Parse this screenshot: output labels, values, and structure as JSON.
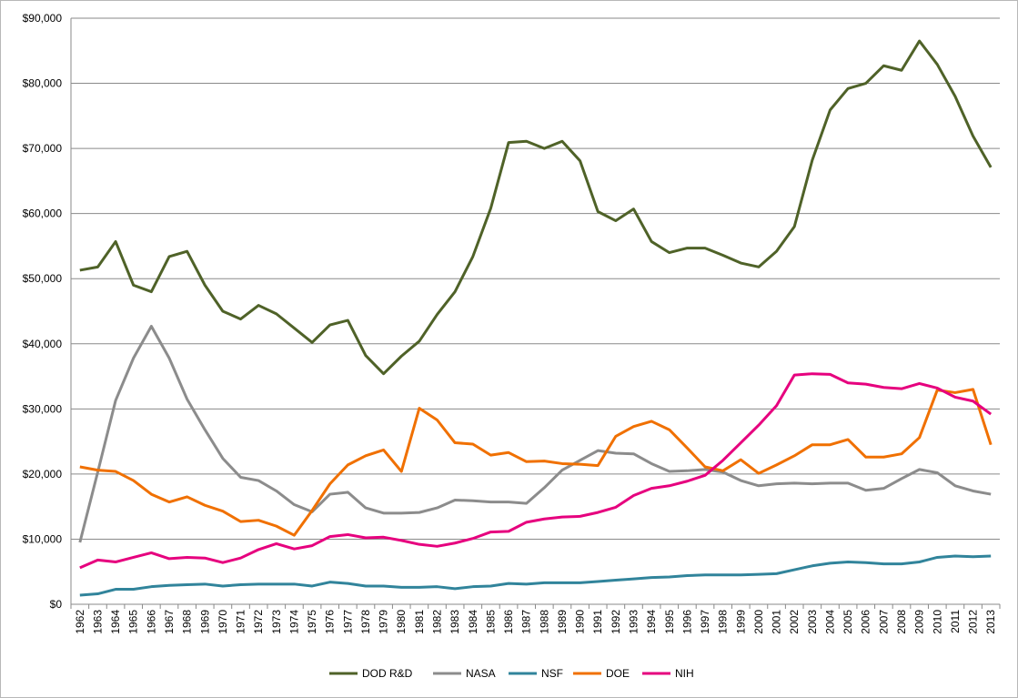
{
  "chart_data": {
    "type": "line",
    "title": "",
    "xlabel": "",
    "ylabel": "",
    "x": [
      1962,
      1963,
      1964,
      1965,
      1966,
      1967,
      1968,
      1969,
      1970,
      1971,
      1972,
      1973,
      1974,
      1975,
      1976,
      1977,
      1978,
      1979,
      1980,
      1981,
      1982,
      1983,
      1984,
      1985,
      1986,
      1987,
      1988,
      1989,
      1990,
      1991,
      1992,
      1993,
      1994,
      1995,
      1996,
      1997,
      1998,
      1999,
      2000,
      2001,
      2002,
      2003,
      2004,
      2005,
      2006,
      2007,
      2008,
      2009,
      2010,
      2011,
      2012,
      2013
    ],
    "ylim": [
      0,
      90000
    ],
    "y_ticks": [
      "$0",
      "$10,000",
      "$20,000",
      "$30,000",
      "$40,000",
      "$50,000",
      "$60,000",
      "$70,000",
      "$80,000",
      "$90,000"
    ],
    "grid": true,
    "legend_position": "bottom",
    "series": [
      {
        "name": "DOD R&D",
        "color": "#4f6228",
        "values": [
          51300,
          51800,
          55700,
          49000,
          48000,
          53400,
          54200,
          49000,
          45000,
          43800,
          45900,
          44600,
          42400,
          40200,
          42900,
          43600,
          38200,
          35400,
          38100,
          40400,
          44500,
          48000,
          53400,
          60800,
          70900,
          71100,
          70000,
          71100,
          68100,
          60300,
          58900,
          60700,
          55700,
          54000,
          54700,
          54700,
          53600,
          52400,
          51800,
          54200,
          58000,
          68200,
          75900,
          79200,
          80000,
          82700,
          82000,
          86500,
          82900,
          78000,
          71900,
          67100
        ]
      },
      {
        "name": "NASA",
        "color": "#8c8c8c",
        "values": [
          9500,
          20300,
          31300,
          37800,
          42700,
          37800,
          31500,
          26800,
          22400,
          19500,
          19000,
          17400,
          15300,
          14200,
          16900,
          17200,
          14800,
          14000,
          14000,
          14100,
          14800,
          16000,
          15900,
          15700,
          15700,
          15500,
          17900,
          20600,
          22100,
          23600,
          23200,
          23100,
          21600,
          20400,
          20500,
          20700,
          20300,
          19000,
          18200,
          18500,
          18600,
          18500,
          18600,
          18600,
          17500,
          17800,
          19300,
          20700,
          20200,
          18200,
          17400,
          16900
        ]
      },
      {
        "name": "NSF",
        "color": "#31849b",
        "values": [
          1400,
          1600,
          2300,
          2300,
          2700,
          2900,
          3000,
          3100,
          2800,
          3000,
          3100,
          3100,
          3100,
          2800,
          3400,
          3200,
          2800,
          2800,
          2600,
          2600,
          2700,
          2400,
          2700,
          2800,
          3200,
          3100,
          3300,
          3300,
          3300,
          3500,
          3700,
          3900,
          4100,
          4200,
          4400,
          4500,
          4500,
          4500,
          4600,
          4700,
          5300,
          5900,
          6300,
          6500,
          6400,
          6200,
          6200,
          6500,
          7200,
          7400,
          7300,
          7400
        ]
      },
      {
        "name": "DOE",
        "color": "#f07000",
        "values": [
          21100,
          20600,
          20400,
          19000,
          16900,
          15700,
          16500,
          15200,
          14300,
          12700,
          12900,
          12000,
          10600,
          14400,
          18500,
          21400,
          22800,
          23700,
          20400,
          30100,
          28300,
          24800,
          24600,
          22900,
          23300,
          21900,
          22000,
          21600,
          21500,
          21300,
          25800,
          27300,
          28100,
          26800,
          24000,
          21100,
          20500,
          22200,
          20100,
          21400,
          22800,
          24500,
          24500,
          25300,
          22600,
          22600,
          23100,
          25600,
          32900,
          32500,
          33000,
          24500
        ]
      },
      {
        "name": "NIH",
        "color": "#e6007e",
        "values": [
          5600,
          6800,
          6500,
          7200,
          7900,
          7000,
          7200,
          7100,
          6400,
          7100,
          8400,
          9300,
          8500,
          9000,
          10400,
          10700,
          10200,
          10300,
          9800,
          9200,
          8900,
          9400,
          10100,
          11100,
          11200,
          12600,
          13100,
          13400,
          13500,
          14100,
          14900,
          16700,
          17800,
          18200,
          18900,
          19800,
          22100,
          24800,
          27500,
          30500,
          35200,
          35400,
          35300,
          34000,
          33800,
          33300,
          33100,
          33900,
          33200,
          31800,
          31200,
          29200
        ]
      }
    ]
  }
}
